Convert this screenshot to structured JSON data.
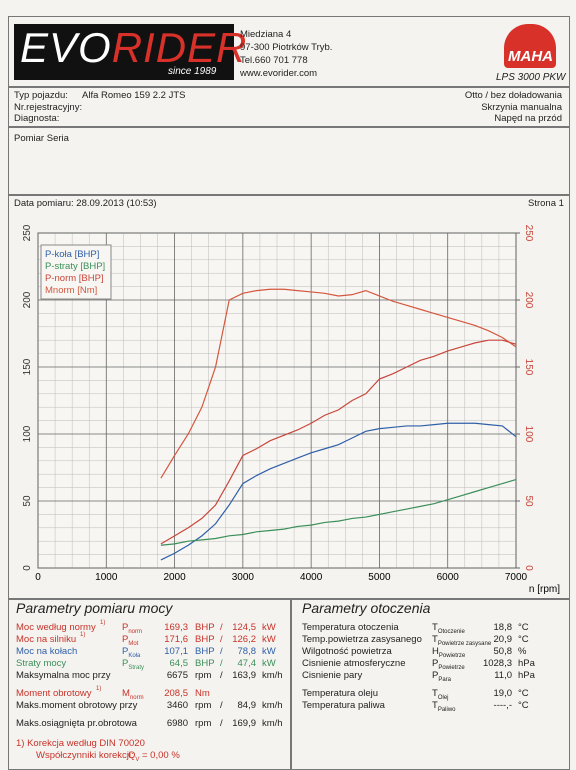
{
  "header": {
    "logo": {
      "first": "EVO",
      "second": "RIDER"
    },
    "since": "since 1989",
    "address": [
      "Miedziana 4",
      "97-300 Piotrków Tryb.",
      "Tel.660 701 778",
      "www.evorider.com"
    ],
    "brand": "MAHA",
    "model": "LPS 3000 PKW"
  },
  "vehicle": {
    "fields": [
      {
        "label": "Typ pojazdu:",
        "value": "Alfa Romeo 159 2.2 JTS"
      },
      {
        "label": "Nr.rejestracyjny:"
      },
      {
        "label": "Diagnosta:"
      }
    ],
    "details": [
      "Otto / bez doładowania",
      "Skrzynia manualna",
      "Napęd na przód"
    ]
  },
  "measurement": "Pomiar Seria",
  "date": "Data pomiaru: 28.09.2013 (10:53)",
  "page": "Strona 1",
  "chart_data": {
    "type": "line",
    "xlabel": "n [rpm]",
    "xlim": [
      0,
      7000
    ],
    "xticks": [
      0,
      1000,
      2000,
      3000,
      4000,
      5000,
      6000,
      7000
    ],
    "ylim": [
      0,
      250
    ],
    "yticks": [
      0,
      50,
      100,
      150,
      200,
      250
    ],
    "y2lim": [
      0,
      250
    ],
    "y2ticks": [
      0,
      50,
      100,
      150,
      200,
      250
    ],
    "grid": true,
    "legend": "upper left",
    "x": [
      1800,
      2000,
      2200,
      2400,
      2600,
      2800,
      3000,
      3200,
      3400,
      3600,
      3800,
      4000,
      4200,
      4400,
      4600,
      4800,
      5000,
      5200,
      5400,
      5600,
      5800,
      6000,
      6200,
      6400,
      6600,
      6800,
      7000
    ],
    "series": [
      {
        "name": "P-koła [BHP]",
        "color": "#2f5fa8",
        "values": [
          6,
          11,
          17,
          24,
          33,
          47,
          63,
          69,
          74,
          78,
          82,
          86,
          89,
          92,
          97,
          102,
          104,
          105,
          106,
          106,
          107,
          108,
          108,
          108,
          107,
          106,
          98
        ]
      },
      {
        "name": "P-straty [BHP]",
        "color": "#3b8f5a",
        "values": [
          17,
          18,
          20,
          21,
          22,
          24,
          25,
          27,
          28,
          29,
          31,
          32,
          34,
          35,
          37,
          38,
          40,
          42,
          44,
          46,
          48,
          51,
          54,
          57,
          60,
          63,
          66
        ]
      },
      {
        "name": "P-norm [BHP]",
        "color": "#c8463a",
        "values": [
          18,
          24,
          30,
          37,
          47,
          65,
          84,
          89,
          95,
          99,
          103,
          108,
          114,
          118,
          125,
          130,
          141,
          145,
          150,
          155,
          158,
          162,
          165,
          168,
          170,
          170,
          167
        ]
      },
      {
        "name": "Mnorm [Nm]",
        "color": "#d4573f",
        "axis": "y2",
        "values": [
          67,
          84,
          100,
          120,
          150,
          200,
          205,
          207,
          208,
          208,
          207,
          206,
          205,
          203,
          204,
          207,
          203,
          199,
          196,
          193,
          190,
          187,
          184,
          181,
          177,
          172,
          165
        ]
      }
    ]
  },
  "power": {
    "title": "Parametry pomiaru mocy",
    "rows": [
      {
        "label": "Moc według normy",
        "note": "1)",
        "symbol": "P",
        "sub": "norm",
        "v1": "169,3",
        "u1": "BHP",
        "sep": "/",
        "v2": "124,5",
        "u2": "kW",
        "color": "#c8332a"
      },
      {
        "label": "Moc na silniku",
        "note": "1)",
        "symbol": "P",
        "sub": "Mot",
        "v1": "171,6",
        "u1": "BHP",
        "sep": "/",
        "v2": "126,2",
        "u2": "kW",
        "color": "#c8332a"
      },
      {
        "label": "Moc na kołach",
        "symbol": "P",
        "sub": "Koła",
        "v1": "107,1",
        "u1": "BHP",
        "sep": "/",
        "v2": "78,8",
        "u2": "kW",
        "color": "#2f5fa8"
      },
      {
        "label": "Straty mocy",
        "symbol": "P",
        "sub": "Straty",
        "v1": "64,5",
        "u1": "BHP",
        "sep": "/",
        "v2": "47,4",
        "u2": "kW",
        "color": "#3b8f5a"
      },
      {
        "label": "Maksymalna moc przy",
        "v1": "6675",
        "u1": "rpm",
        "sep": "/",
        "v2": "163,9",
        "u2": "km/h",
        "color": "#222222"
      },
      {
        "label": "Moment obrotowy",
        "note": "1)",
        "symbol": "M",
        "sub": "norm",
        "v1": "208,5",
        "u1": "Nm",
        "color": "#c8332a"
      },
      {
        "label": "Maks.moment obrotowy przy",
        "v1": "3460",
        "u1": "rpm",
        "sep": "/",
        "v2": "84,9",
        "u2": "km/h",
        "color": "#222222"
      },
      {
        "label": "Maks.osiągnięta pr.obrotowa",
        "v1": "6980",
        "u1": "rpm",
        "sep": "/",
        "v2": "169,9",
        "u2": "km/h",
        "color": "#222222"
      }
    ],
    "footnote": "1) Korekcja według DIN 70020",
    "correction": {
      "label": "Współczynniki korekcji:",
      "symbol": "Q",
      "sub": "V",
      "value": "= 0,00 %"
    }
  },
  "ambient": {
    "title": "Parametry otoczenia",
    "rows": [
      {
        "label": "Temperatura otoczenia",
        "symbol": "T",
        "sub": "Otoczenie",
        "value": "18,8",
        "unit": "°C"
      },
      {
        "label": "Temp.powietrza zasysanego",
        "symbol": "T",
        "sub": "Powietrze zasysane",
        "value": "20,9",
        "unit": "°C"
      },
      {
        "label": "Wilgotność powietrza",
        "symbol": "H",
        "sub": "Powietrze",
        "value": "50,8",
        "unit": "%"
      },
      {
        "label": "Cisnienie atmosferyczne",
        "symbol": "P",
        "sub": "Powietrze",
        "value": "1028,3",
        "unit": "hPa"
      },
      {
        "label": "Cisnienie pary",
        "symbol": "P",
        "sub": "Para",
        "value": "11,0",
        "unit": "hPa"
      },
      {
        "label": "Temperatura oleju",
        "symbol": "T",
        "sub": "Olej",
        "value": "19,0",
        "unit": "°C"
      },
      {
        "label": "Temperatura paliwa",
        "symbol": "T",
        "sub": "Paliwo",
        "value": "----,-",
        "unit": "°C"
      }
    ]
  }
}
